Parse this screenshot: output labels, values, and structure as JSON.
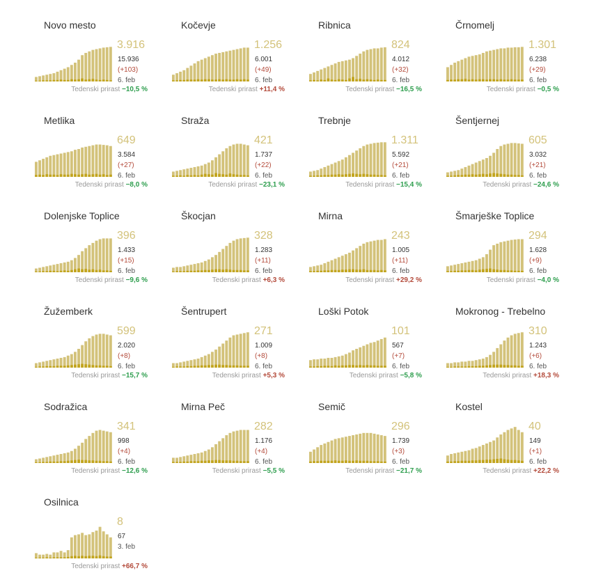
{
  "colors": {
    "bar": "#d3c27a",
    "bar_small": "#c2a51f",
    "pos": "#b34a3a",
    "neg": "#2e9e4e"
  },
  "growth_label": "Tedenski prirast",
  "chart_data": [
    {
      "type": "bar",
      "title": "Novo mesto",
      "active": "3.916",
      "total": "15.936",
      "increase": "(+103)",
      "date": "6. feb",
      "growth": "−10,5 %",
      "growth_sign": "neg",
      "values": [
        12,
        14,
        16,
        18,
        20,
        22,
        26,
        30,
        34,
        38,
        44,
        50,
        58,
        70,
        76,
        80,
        84,
        86,
        88,
        90,
        91,
        92
      ],
      "daily": [
        2,
        2,
        3,
        3,
        3,
        4,
        4,
        5,
        4,
        4,
        6,
        5,
        6,
        8,
        5,
        6,
        7,
        5,
        4,
        5,
        4,
        3
      ]
    },
    {
      "type": "bar",
      "title": "Kočevje",
      "active": "1.256",
      "total": "6.001",
      "increase": "(+49)",
      "date": "6. feb",
      "growth": "+11,4 %",
      "growth_sign": "pos",
      "values": [
        18,
        22,
        26,
        30,
        36,
        42,
        48,
        54,
        58,
        62,
        66,
        70,
        74,
        76,
        78,
        80,
        82,
        84,
        86,
        88,
        90,
        90
      ],
      "daily": [
        3,
        3,
        4,
        4,
        5,
        5,
        5,
        6,
        5,
        6,
        6,
        5,
        5,
        6,
        5,
        6,
        5,
        5,
        6,
        5,
        6,
        5
      ]
    },
    {
      "type": "bar",
      "title": "Ribnica",
      "active": "824",
      "total": "4.012",
      "increase": "(+32)",
      "date": "6. feb",
      "growth": "−16,5 %",
      "growth_sign": "neg",
      "values": [
        20,
        24,
        28,
        32,
        36,
        40,
        44,
        48,
        52,
        54,
        56,
        58,
        62,
        68,
        74,
        80,
        84,
        86,
        88,
        88,
        90,
        91
      ],
      "daily": [
        3,
        4,
        3,
        5,
        4,
        8,
        5,
        4,
        6,
        5,
        4,
        8,
        12,
        6,
        7,
        5,
        6,
        5,
        4,
        5,
        4,
        4
      ]
    },
    {
      "type": "bar",
      "title": "Črnomelj",
      "active": "1.301",
      "total": "6.238",
      "increase": "(+29)",
      "date": "6. feb",
      "growth": "−0,5 %",
      "growth_sign": "neg",
      "values": [
        38,
        44,
        50,
        54,
        58,
        62,
        66,
        68,
        70,
        72,
        76,
        80,
        82,
        84,
        86,
        88,
        88,
        90,
        90,
        91,
        91,
        92
      ],
      "daily": [
        4,
        5,
        5,
        6,
        6,
        7,
        5,
        6,
        5,
        6,
        6,
        5,
        6,
        6,
        5,
        6,
        5,
        5,
        6,
        5,
        5,
        5
      ]
    },
    {
      "type": "bar",
      "title": "Metlika",
      "active": "649",
      "total": "3.584",
      "increase": "(+27)",
      "date": "6. feb",
      "growth": "−8,0 %",
      "growth_sign": "neg",
      "values": [
        40,
        44,
        48,
        52,
        56,
        58,
        60,
        62,
        64,
        66,
        68,
        72,
        74,
        78,
        80,
        82,
        84,
        86,
        86,
        85,
        84,
        82
      ],
      "daily": [
        5,
        6,
        5,
        7,
        6,
        6,
        5,
        7,
        6,
        6,
        8,
        7,
        6,
        7,
        8,
        6,
        7,
        8,
        6,
        7,
        5,
        6
      ]
    },
    {
      "type": "bar",
      "title": "Straža",
      "active": "421",
      "total": "1.737",
      "increase": "(+22)",
      "date": "6. feb",
      "growth": "−23,1 %",
      "growth_sign": "neg",
      "values": [
        14,
        16,
        18,
        20,
        22,
        24,
        26,
        28,
        30,
        34,
        38,
        44,
        52,
        60,
        68,
        76,
        82,
        86,
        88,
        88,
        86,
        84
      ],
      "daily": [
        3,
        3,
        4,
        3,
        5,
        4,
        5,
        4,
        6,
        8,
        7,
        6,
        10,
        8,
        7,
        6,
        9,
        7,
        6,
        5,
        5,
        4
      ]
    },
    {
      "type": "bar",
      "title": "Trebnje",
      "active": "1.311",
      "total": "5.592",
      "increase": "(+21)",
      "date": "6. feb",
      "growth": "−15,4 %",
      "growth_sign": "neg",
      "values": [
        14,
        16,
        18,
        22,
        26,
        30,
        34,
        38,
        42,
        46,
        52,
        58,
        64,
        70,
        76,
        82,
        86,
        88,
        90,
        91,
        92,
        92
      ],
      "daily": [
        3,
        3,
        4,
        4,
        5,
        5,
        6,
        6,
        7,
        6,
        7,
        8,
        9,
        8,
        7,
        8,
        7,
        6,
        6,
        5,
        5,
        4
      ]
    },
    {
      "type": "bar",
      "title": "Šentjernej",
      "active": "605",
      "total": "3.032",
      "increase": "(+21)",
      "date": "6. feb",
      "growth": "−24,6 %",
      "growth_sign": "neg",
      "values": [
        12,
        14,
        16,
        18,
        22,
        26,
        30,
        34,
        38,
        42,
        46,
        50,
        56,
        64,
        74,
        82,
        86,
        88,
        90,
        90,
        89,
        88
      ],
      "daily": [
        3,
        3,
        4,
        5,
        5,
        6,
        6,
        7,
        6,
        7,
        8,
        7,
        9,
        10,
        9,
        8,
        7,
        6,
        6,
        5,
        5,
        4
      ]
    },
    {
      "type": "bar",
      "title": "Dolenjske Toplice",
      "active": "396",
      "total": "1.433",
      "increase": "(+15)",
      "date": "6. feb",
      "growth": "−9,6 %",
      "growth_sign": "neg",
      "values": [
        10,
        12,
        14,
        16,
        18,
        20,
        22,
        24,
        26,
        28,
        32,
        38,
        46,
        56,
        64,
        72,
        78,
        84,
        88,
        90,
        90,
        90
      ],
      "daily": [
        2,
        2,
        3,
        3,
        4,
        4,
        3,
        4,
        5,
        4,
        6,
        8,
        10,
        8,
        9,
        7,
        8,
        6,
        7,
        5,
        5,
        4
      ]
    },
    {
      "type": "bar",
      "title": "Škocjan",
      "active": "328",
      "total": "1.283",
      "increase": "(+11)",
      "date": "6. feb",
      "growth": "+6,3 %",
      "growth_sign": "pos",
      "values": [
        12,
        14,
        14,
        16,
        18,
        20,
        22,
        24,
        26,
        30,
        34,
        40,
        46,
        54,
        62,
        70,
        78,
        84,
        88,
        90,
        91,
        92
      ],
      "daily": [
        2,
        3,
        3,
        3,
        4,
        4,
        4,
        5,
        5,
        6,
        6,
        7,
        8,
        8,
        7,
        8,
        7,
        6,
        6,
        6,
        5,
        5
      ]
    },
    {
      "type": "bar",
      "title": "Mirna",
      "active": "243",
      "total": "1.005",
      "increase": "(+11)",
      "date": "6. feb",
      "growth": "+29,2 %",
      "growth_sign": "pos",
      "values": [
        14,
        16,
        18,
        20,
        24,
        28,
        32,
        36,
        40,
        44,
        48,
        52,
        58,
        64,
        70,
        76,
        80,
        82,
        84,
        86,
        86,
        88
      ],
      "daily": [
        3,
        3,
        4,
        4,
        5,
        5,
        6,
        6,
        6,
        7,
        7,
        8,
        8,
        7,
        7,
        8,
        6,
        6,
        6,
        5,
        6,
        5
      ]
    },
    {
      "type": "bar",
      "title": "Šmarješke Toplice",
      "active": "294",
      "total": "1.628",
      "increase": "(+9)",
      "date": "6. feb",
      "growth": "−4,0 %",
      "growth_sign": "neg",
      "values": [
        16,
        18,
        20,
        22,
        24,
        26,
        28,
        30,
        32,
        36,
        40,
        48,
        60,
        72,
        76,
        80,
        82,
        84,
        86,
        87,
        88,
        88
      ],
      "daily": [
        3,
        3,
        4,
        4,
        5,
        5,
        6,
        6,
        5,
        7,
        8,
        9,
        10,
        8,
        7,
        6,
        6,
        5,
        5,
        4,
        4,
        4
      ]
    },
    {
      "type": "bar",
      "title": "Žužemberk",
      "active": "599",
      "total": "2.020",
      "increase": "(+8)",
      "date": "6. feb",
      "growth": "−15,7 %",
      "growth_sign": "neg",
      "values": [
        12,
        14,
        16,
        18,
        20,
        22,
        24,
        26,
        28,
        32,
        36,
        42,
        50,
        60,
        70,
        78,
        84,
        88,
        90,
        90,
        88,
        86
      ],
      "daily": [
        2,
        3,
        3,
        4,
        4,
        4,
        5,
        5,
        5,
        6,
        7,
        8,
        9,
        10,
        9,
        8,
        7,
        6,
        6,
        5,
        5,
        4
      ]
    },
    {
      "type": "bar",
      "title": "Šentrupert",
      "active": "271",
      "total": "1.009",
      "increase": "(+8)",
      "date": "6. feb",
      "growth": "+5,3 %",
      "growth_sign": "pos",
      "values": [
        12,
        12,
        14,
        16,
        18,
        20,
        22,
        24,
        28,
        32,
        36,
        42,
        48,
        56,
        64,
        72,
        80,
        86,
        88,
        90,
        92,
        94
      ],
      "daily": [
        2,
        3,
        3,
        3,
        4,
        4,
        5,
        5,
        6,
        6,
        7,
        7,
        8,
        8,
        7,
        7,
        6,
        6,
        6,
        5,
        5,
        5
      ]
    },
    {
      "type": "bar",
      "title": "Loški Potok",
      "active": "101",
      "total": "567",
      "increase": "(+7)",
      "date": "6. feb",
      "growth": "−5,8 %",
      "growth_sign": "neg",
      "values": [
        20,
        22,
        22,
        24,
        24,
        26,
        26,
        28,
        30,
        32,
        36,
        40,
        46,
        50,
        54,
        58,
        62,
        66,
        68,
        72,
        76,
        80
      ],
      "daily": [
        3,
        3,
        4,
        4,
        5,
        5,
        4,
        6,
        5,
        6,
        6,
        7,
        7,
        6,
        7,
        6,
        7,
        6,
        6,
        5,
        5,
        5
      ]
    },
    {
      "type": "bar",
      "title": "Mokronog - Trebelno",
      "active": "310",
      "total": "1.243",
      "increase": "(+6)",
      "date": "6. feb",
      "growth": "+18,3 %",
      "growth_sign": "pos",
      "values": [
        12,
        12,
        14,
        14,
        16,
        16,
        18,
        18,
        20,
        22,
        24,
        28,
        34,
        42,
        52,
        62,
        72,
        80,
        86,
        90,
        92,
        94
      ],
      "daily": [
        2,
        2,
        3,
        3,
        3,
        3,
        4,
        4,
        4,
        5,
        5,
        6,
        7,
        8,
        8,
        8,
        7,
        7,
        6,
        6,
        5,
        5
      ]
    },
    {
      "type": "bar",
      "title": "Sodražica",
      "active": "341",
      "total": "998",
      "increase": "(+4)",
      "date": "6. feb",
      "growth": "−12,6 %",
      "growth_sign": "neg",
      "values": [
        10,
        12,
        14,
        16,
        18,
        20,
        22,
        24,
        26,
        28,
        32,
        38,
        46,
        54,
        64,
        72,
        80,
        86,
        88,
        86,
        84,
        82
      ],
      "daily": [
        2,
        2,
        3,
        3,
        4,
        4,
        4,
        5,
        5,
        6,
        7,
        8,
        9,
        8,
        8,
        7,
        7,
        6,
        6,
        5,
        5,
        4
      ]
    },
    {
      "type": "bar",
      "title": "Mirna Peč",
      "active": "282",
      "total": "1.176",
      "increase": "(+4)",
      "date": "6. feb",
      "growth": "−5,5 %",
      "growth_sign": "neg",
      "values": [
        14,
        14,
        16,
        18,
        20,
        22,
        24,
        26,
        28,
        32,
        36,
        42,
        50,
        58,
        66,
        74,
        80,
        84,
        86,
        88,
        88,
        88
      ],
      "daily": [
        3,
        3,
        3,
        4,
        4,
        5,
        5,
        5,
        6,
        6,
        7,
        7,
        8,
        8,
        7,
        7,
        7,
        6,
        6,
        5,
        5,
        5
      ]
    },
    {
      "type": "bar",
      "title": "Semič",
      "active": "296",
      "total": "1.739",
      "increase": "(+3)",
      "date": "6. feb",
      "growth": "−21,7 %",
      "growth_sign": "neg",
      "values": [
        30,
        36,
        42,
        48,
        52,
        56,
        60,
        64,
        66,
        68,
        70,
        72,
        74,
        76,
        78,
        80,
        80,
        80,
        78,
        76,
        74,
        72
      ],
      "daily": [
        4,
        5,
        5,
        6,
        6,
        6,
        6,
        7,
        6,
        6,
        7,
        6,
        6,
        7,
        6,
        6,
        6,
        5,
        5,
        5,
        4,
        4
      ]
    },
    {
      "type": "bar",
      "title": "Kostel",
      "active": "40",
      "total": "149",
      "increase": "(+1)",
      "date": "6. feb",
      "growth": "+22,2 %",
      "growth_sign": "pos",
      "values": [
        20,
        24,
        26,
        28,
        30,
        32,
        34,
        38,
        40,
        44,
        48,
        52,
        56,
        60,
        68,
        76,
        82,
        88,
        92,
        96,
        88,
        82
      ],
      "daily": [
        4,
        4,
        5,
        5,
        6,
        6,
        6,
        7,
        7,
        8,
        8,
        9,
        9,
        10,
        11,
        12,
        10,
        9,
        8,
        8,
        7,
        6
      ]
    },
    {
      "type": "bar",
      "title": "Osilnica",
      "active": "8",
      "total": "67",
      "increase": "",
      "date": "3. feb",
      "growth": "+66,7 %",
      "growth_sign": "pos",
      "values": [
        14,
        10,
        10,
        12,
        10,
        16,
        16,
        20,
        16,
        22,
        56,
        62,
        64,
        68,
        62,
        64,
        70,
        74,
        84,
        72,
        64,
        56
      ],
      "daily": [
        2,
        2,
        2,
        3,
        2,
        3,
        3,
        3,
        3,
        4,
        6,
        7,
        6,
        7,
        6,
        7,
        7,
        6,
        8,
        6,
        5,
        5
      ]
    }
  ]
}
